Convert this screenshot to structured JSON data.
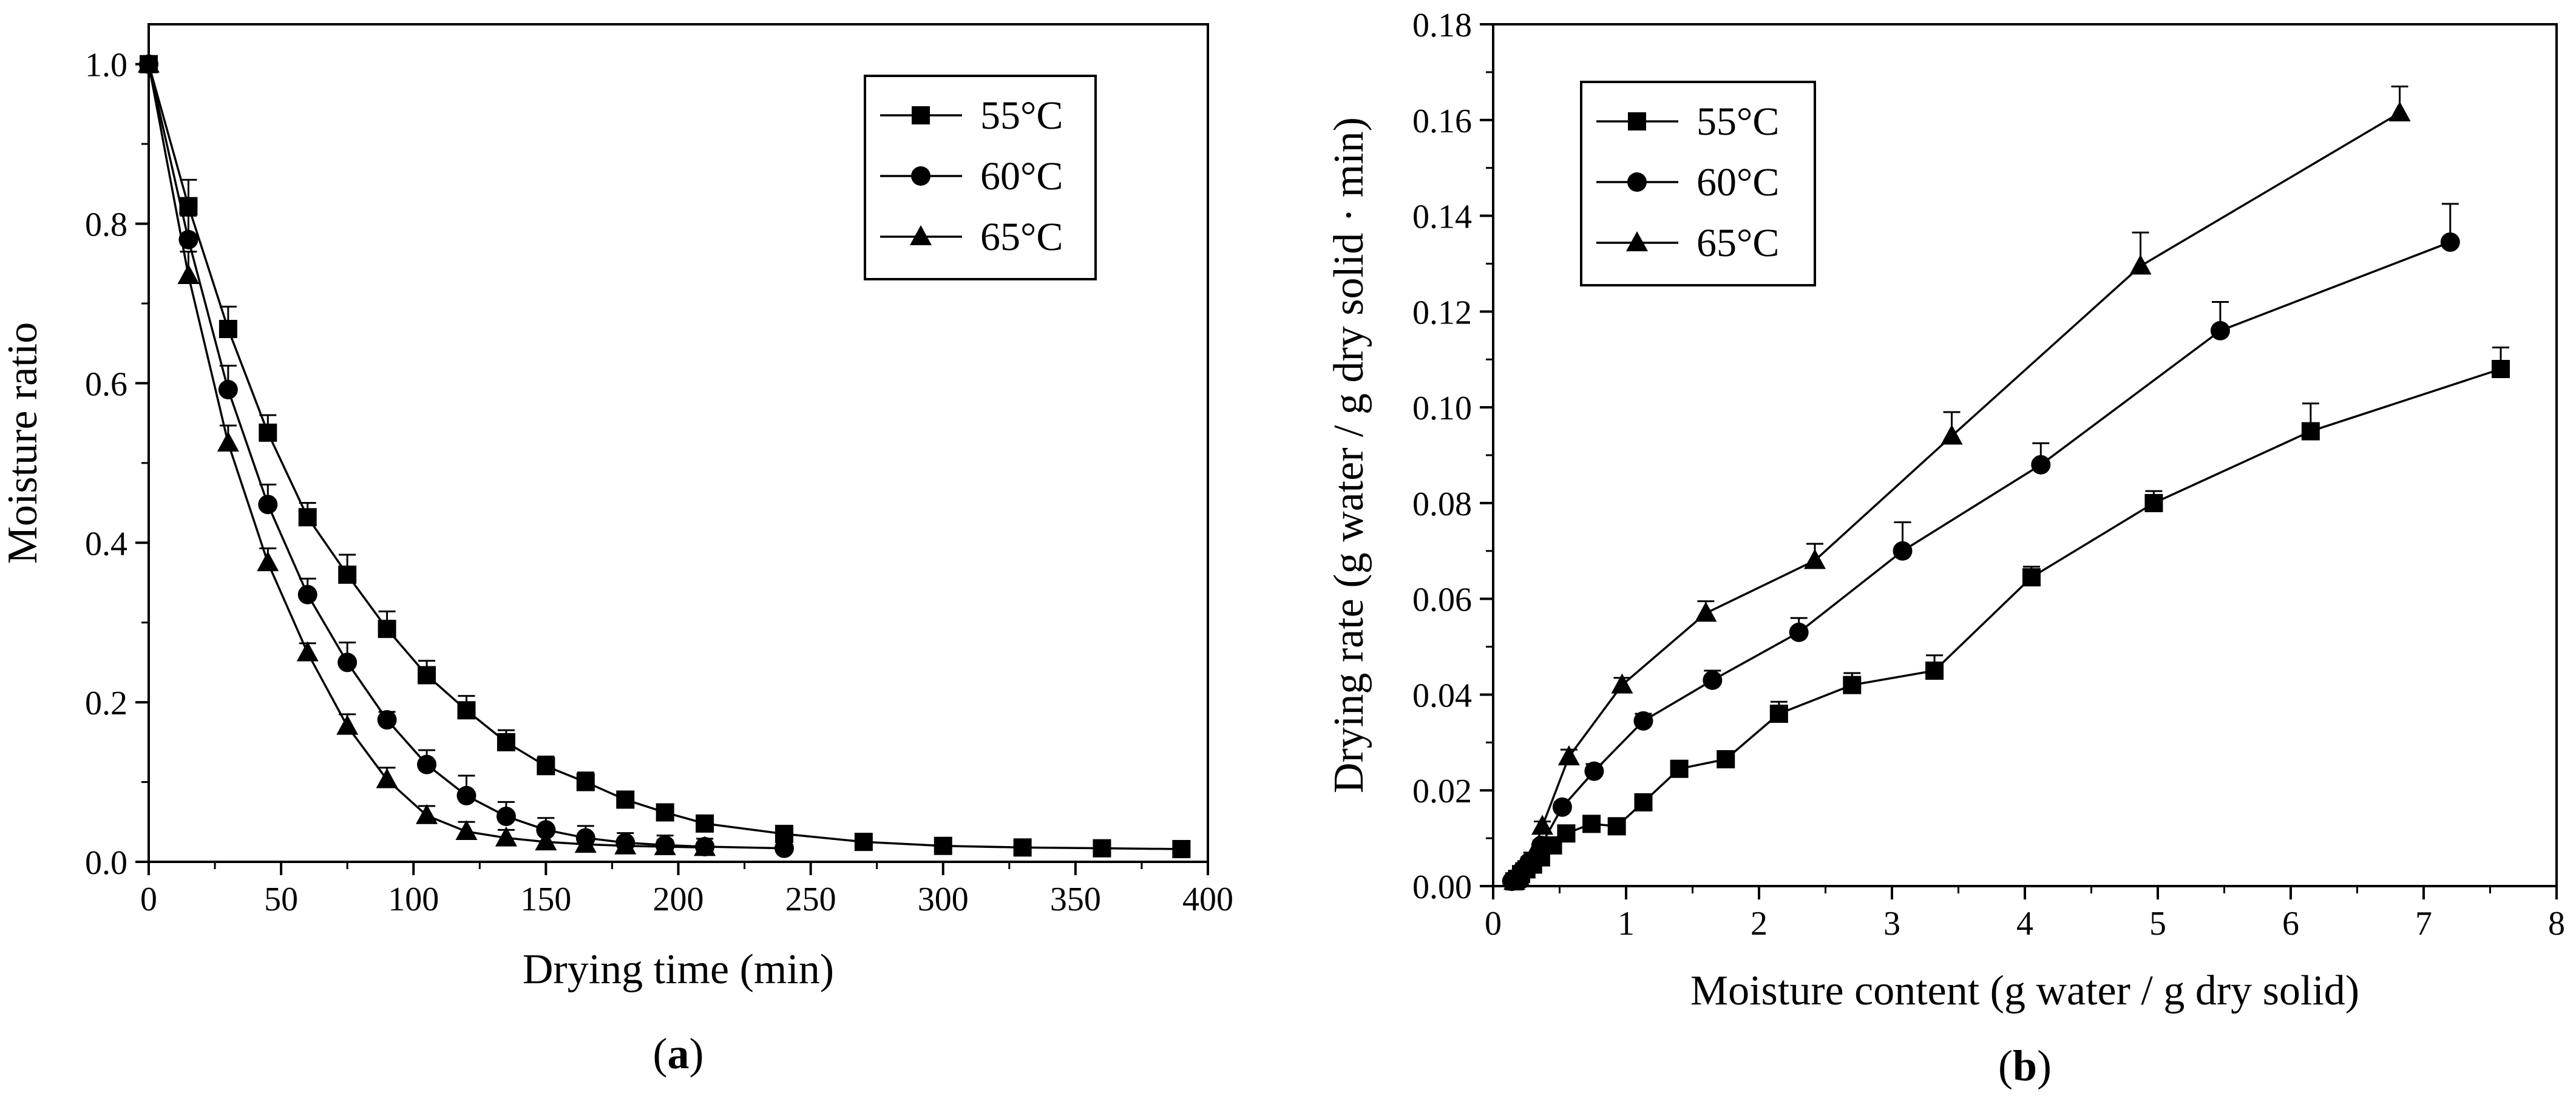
{
  "chart_data": [
    {
      "type": "line",
      "panel_label": {
        "open": "(",
        "letter": "a",
        "close": ")"
      },
      "xlabel": "Drying time (min)",
      "ylabel": "Moisture ratio",
      "xlim": [
        0,
        400
      ],
      "ylim": [
        0,
        1.05
      ],
      "xticks": [
        0,
        50,
        100,
        150,
        200,
        250,
        300,
        350,
        400
      ],
      "yticks": [
        0.0,
        0.2,
        0.4,
        0.6,
        0.8,
        1.0
      ],
      "xtick_labels": [
        "0",
        "50",
        "100",
        "150",
        "200",
        "250",
        "300",
        "350",
        "400"
      ],
      "ytick_labels": [
        "0.0",
        "0.2",
        "0.4",
        "0.6",
        "0.8",
        "1.0"
      ],
      "grid": false,
      "legend_position": "top-right",
      "series": [
        {
          "name": "55°C",
          "marker": "square",
          "x": [
            0,
            15,
            30,
            45,
            60,
            75,
            90,
            105,
            120,
            135,
            150,
            165,
            180,
            195,
            210,
            240,
            270,
            300,
            330,
            360,
            390
          ],
          "y": [
            1.0,
            0.822,
            0.668,
            0.538,
            0.432,
            0.36,
            0.292,
            0.234,
            0.19,
            0.15,
            0.12,
            0.1,
            0.078,
            0.062,
            0.048,
            0.035,
            0.025,
            0.02,
            0.018,
            0.017,
            0.016
          ],
          "err": [
            0,
            0.033,
            0.028,
            0.022,
            0.018,
            0.025,
            0.022,
            0.018,
            0.018,
            0.015,
            0.012,
            0.012,
            0.01,
            0.01,
            0.008,
            0.008,
            0.008,
            0.006,
            0.006,
            0.005,
            0.005
          ]
        },
        {
          "name": "60°C",
          "marker": "circle",
          "x": [
            0,
            15,
            30,
            45,
            60,
            75,
            90,
            105,
            120,
            135,
            150,
            165,
            180,
            195,
            210,
            240
          ],
          "y": [
            1.0,
            0.78,
            0.592,
            0.448,
            0.335,
            0.25,
            0.178,
            0.122,
            0.083,
            0.057,
            0.04,
            0.03,
            0.024,
            0.021,
            0.019,
            0.017
          ],
          "err": [
            0,
            0.03,
            0.03,
            0.025,
            0.02,
            0.025,
            0.01,
            0.018,
            0.025,
            0.018,
            0.015,
            0.015,
            0.012,
            0.012,
            0.01,
            0.008
          ]
        },
        {
          "name": "65°C",
          "marker": "triangle",
          "x": [
            0,
            15,
            30,
            45,
            60,
            75,
            90,
            105,
            120,
            135,
            150,
            165,
            180,
            195,
            210
          ],
          "y": [
            1.0,
            0.735,
            0.525,
            0.375,
            0.262,
            0.17,
            0.103,
            0.058,
            0.038,
            0.03,
            0.025,
            0.022,
            0.02,
            0.019,
            0.018
          ],
          "err": [
            0,
            0.03,
            0.022,
            0.018,
            0.012,
            0.015,
            0.015,
            0.012,
            0.012,
            0.01,
            0.01,
            0.01,
            0.008,
            0.008,
            0.006
          ]
        }
      ]
    },
    {
      "type": "line",
      "panel_label": {
        "open": "(",
        "letter": "b",
        "close": ")"
      },
      "xlabel": "Moisture content (g water / g dry solid)",
      "ylabel": "Drying rate (g water / g dry solid · min)",
      "xlim": [
        0,
        8
      ],
      "ylim": [
        0,
        0.18
      ],
      "xticks": [
        0,
        1,
        2,
        3,
        4,
        5,
        6,
        7,
        8
      ],
      "yticks": [
        0.0,
        0.02,
        0.04,
        0.06,
        0.08,
        0.1,
        0.12,
        0.14,
        0.16,
        0.18
      ],
      "xtick_labels": [
        "0",
        "1",
        "2",
        "3",
        "4",
        "5",
        "6",
        "7",
        "8"
      ],
      "ytick_labels": [
        "0.00",
        "0.02",
        "0.04",
        "0.06",
        "0.08",
        "0.10",
        "0.12",
        "0.14",
        "0.16",
        "0.18"
      ],
      "grid": false,
      "legend_position": "top-left",
      "series": [
        {
          "name": "55°C",
          "marker": "square",
          "x": [
            7.58,
            6.15,
            4.97,
            4.05,
            3.32,
            2.7,
            2.15,
            1.75,
            1.4,
            1.13,
            0.93,
            0.74,
            0.55,
            0.45,
            0.36,
            0.3,
            0.25,
            0.21,
            0.18,
            0.16
          ],
          "y": [
            0.108,
            0.095,
            0.08,
            0.0645,
            0.045,
            0.042,
            0.036,
            0.0265,
            0.0245,
            0.0175,
            0.0125,
            0.013,
            0.011,
            0.0085,
            0.006,
            0.0045,
            0.0035,
            0.0025,
            0.0015,
            0.001
          ],
          "err": [
            0.0045,
            0.0058,
            0.0025,
            0.0022,
            0.0032,
            0.0025,
            0.0025,
            0.001,
            0.001,
            0.001,
            0.001,
            0.001,
            0.001,
            0.001,
            0.001,
            0.001,
            0.0008,
            0.0008,
            0.0006,
            0.0006
          ]
        },
        {
          "name": "60°C",
          "marker": "circle",
          "x": [
            7.2,
            5.47,
            4.12,
            3.08,
            2.3,
            1.65,
            1.13,
            0.76,
            0.52,
            0.36,
            0.27,
            0.21,
            0.17,
            0.14
          ],
          "y": [
            0.1345,
            0.116,
            0.088,
            0.07,
            0.053,
            0.043,
            0.0345,
            0.024,
            0.0165,
            0.0085,
            0.005,
            0.003,
            0.0015,
            0.001
          ],
          "err": [
            0.008,
            0.006,
            0.0045,
            0.006,
            0.003,
            0.002,
            0.0015,
            0.0015,
            0.001,
            0.001,
            0.001,
            0.0008,
            0.0006,
            0.0006
          ]
        },
        {
          "name": "65°C",
          "marker": "triangle",
          "x": [
            6.82,
            4.87,
            3.45,
            2.42,
            1.6,
            0.97,
            0.57,
            0.37,
            0.29,
            0.23,
            0.19,
            0.16
          ],
          "y": [
            0.1615,
            0.1295,
            0.094,
            0.068,
            0.057,
            0.042,
            0.027,
            0.0125,
            0.006,
            0.004,
            0.002,
            0.001
          ],
          "err": [
            0.0055,
            0.007,
            0.005,
            0.0035,
            0.0025,
            0.0015,
            0.0015,
            0.001,
            0.001,
            0.0008,
            0.0006,
            0.0006
          ]
        }
      ]
    }
  ]
}
